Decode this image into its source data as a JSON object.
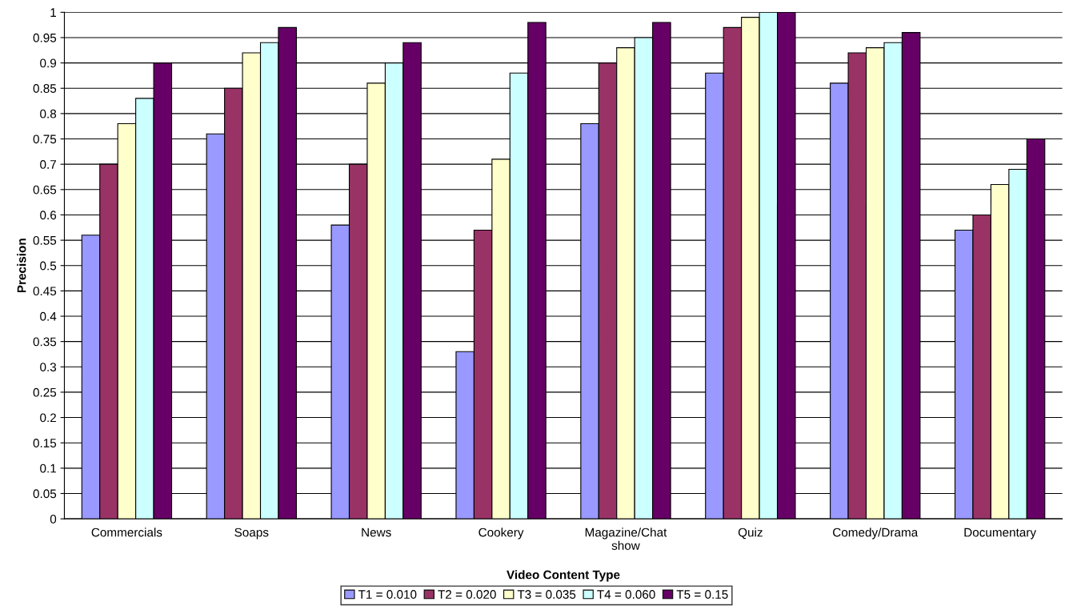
{
  "chart_data": {
    "type": "bar",
    "xlabel": "Video Content Type",
    "ylabel": "Precision",
    "categories": [
      "Commercials",
      "Soaps",
      "News",
      "Cookery",
      "Magazine/Chat show",
      "Quiz",
      "Comedy/Drama",
      "Documentary"
    ],
    "series": [
      {
        "name": "T1 = 0.010",
        "color": "#9999ff",
        "values": [
          0.56,
          0.76,
          0.58,
          0.33,
          0.78,
          0.88,
          0.86,
          0.57
        ]
      },
      {
        "name": "T2 = 0.020",
        "color": "#993366",
        "values": [
          0.7,
          0.85,
          0.7,
          0.57,
          0.9,
          0.97,
          0.92,
          0.6
        ]
      },
      {
        "name": "T3 = 0.035",
        "color": "#ffffcc",
        "values": [
          0.78,
          0.92,
          0.86,
          0.71,
          0.93,
          0.99,
          0.93,
          0.66
        ]
      },
      {
        "name": "T4 = 0.060",
        "color": "#ccffff",
        "values": [
          0.83,
          0.94,
          0.9,
          0.88,
          0.95,
          1.0,
          0.94,
          0.69
        ]
      },
      {
        "name": "T5 = 0.15",
        "color": "#660066",
        "values": [
          0.9,
          0.97,
          0.94,
          0.98,
          0.98,
          1.0,
          0.96,
          0.75
        ]
      }
    ],
    "ylim": [
      0,
      1
    ],
    "yticks": [
      0,
      0.05,
      0.1,
      0.15,
      0.2,
      0.25,
      0.3,
      0.35,
      0.4,
      0.45,
      0.5,
      0.55,
      0.6,
      0.65,
      0.7,
      0.75,
      0.8,
      0.85,
      0.9,
      0.95,
      1
    ],
    "grid": "y",
    "legend": "bottom"
  }
}
